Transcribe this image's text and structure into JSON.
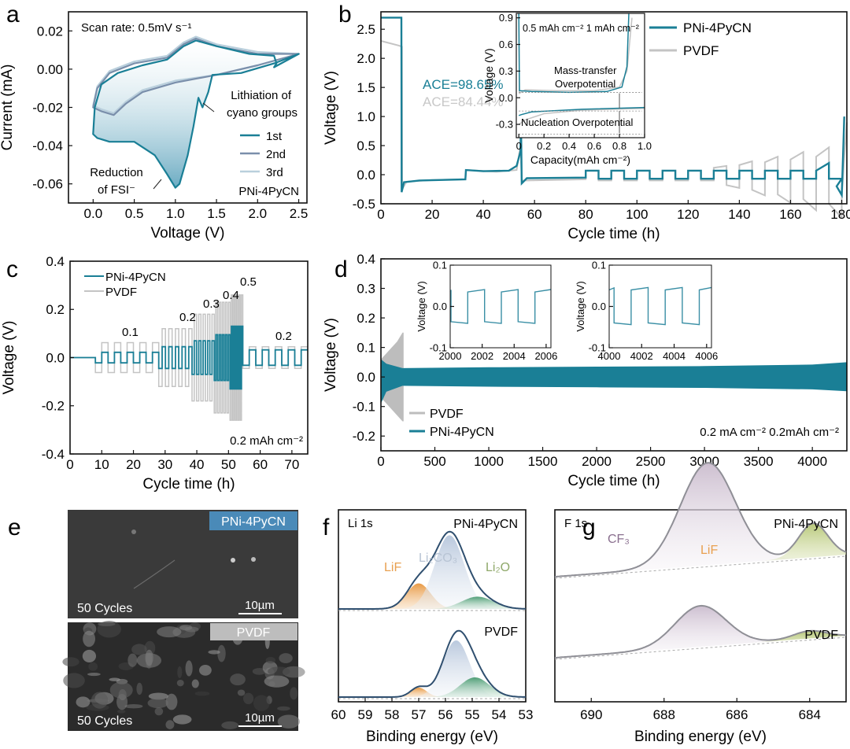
{
  "colors": {
    "teal": "#1a7f96",
    "gray": "#c4c4c4",
    "navy": "#2f4f6f",
    "blueLabel": "#4a8ab8",
    "orange": "#e89a45",
    "green": "#6aaa7a",
    "purple": "#8a6f8f",
    "lif_text": "#e8a050",
    "li2o_text": "#8fa86a",
    "li2co3_text": "#b8c4d4"
  },
  "panels": {
    "a": "a",
    "b": "b",
    "c": "c",
    "d": "d",
    "e": "e",
    "f": "f",
    "g": "g"
  },
  "chart_data": [
    {
      "id": "a",
      "type": "line",
      "title": "",
      "xlabel": "Voltage (V)",
      "ylabel": "Current (mA)",
      "xlim": [
        -0.3,
        2.6
      ],
      "ylim": [
        -0.07,
        0.03
      ],
      "xticks": [
        0.0,
        0.5,
        1.0,
        1.5,
        2.0,
        2.5
      ],
      "xtick_labels": [
        "0.0",
        "0.5",
        "1.0",
        "1.5",
        "2.0",
        "2.5"
      ],
      "yticks": [
        0.02,
        0.0,
        -0.02,
        -0.04,
        -0.06
      ],
      "ytick_labels": [
        "0.02",
        "0.00",
        "-0.02",
        "-0.04",
        "-0.06"
      ],
      "annotations": [
        "Scan rate: 0.5mV s⁻¹",
        "Lithiation of",
        "cyano groups",
        "Reduction",
        "of FSI⁻",
        "PNi-4PyCN"
      ],
      "legend": [
        "1st",
        "2nd",
        "3rd"
      ],
      "series": [
        {
          "name": "1st",
          "x": [
            2.5,
            2.2,
            1.8,
            1.45,
            1.4,
            1.33,
            1.28,
            1.22,
            1.15,
            1.05,
            1.0,
            0.9,
            0.75,
            0.5,
            0.3,
            0.2,
            0.05,
            0.0,
            0.02,
            0.1,
            0.3,
            0.6,
            0.9,
            1.1,
            1.25,
            1.5,
            1.9,
            2.2,
            2.23,
            2.2,
            2.5
          ],
          "y": [
            0.008,
            0.003,
            -0.002,
            -0.003,
            -0.012,
            -0.02,
            -0.015,
            -0.03,
            -0.045,
            -0.06,
            -0.062,
            -0.055,
            -0.045,
            -0.038,
            -0.038,
            -0.038,
            -0.036,
            -0.034,
            -0.02,
            -0.008,
            -0.002,
            0.002,
            0.005,
            0.012,
            0.015,
            0.012,
            0.008,
            0.007,
            0.003,
            0.001,
            0.008
          ]
        },
        {
          "name": "2nd",
          "x": [
            2.5,
            2.0,
            1.5,
            1.0,
            0.6,
            0.4,
            0.25,
            0.1,
            0.0,
            0.05,
            0.2,
            0.5,
            0.9,
            1.1,
            1.25,
            1.5,
            2.0,
            2.5
          ],
          "y": [
            0.008,
            0.002,
            -0.003,
            -0.007,
            -0.012,
            -0.018,
            -0.024,
            -0.022,
            -0.02,
            -0.01,
            -0.002,
            0.003,
            0.006,
            0.013,
            0.016,
            0.012,
            0.008,
            0.008
          ]
        },
        {
          "name": "3rd",
          "x": [
            2.5,
            2.0,
            1.5,
            1.0,
            0.6,
            0.4,
            0.25,
            0.1,
            0.0,
            0.05,
            0.2,
            0.5,
            0.9,
            1.1,
            1.25,
            1.5,
            2.0,
            2.5
          ],
          "y": [
            0.008,
            0.002,
            -0.003,
            -0.006,
            -0.011,
            -0.017,
            -0.023,
            -0.021,
            -0.019,
            -0.009,
            -0.001,
            0.004,
            0.007,
            0.014,
            0.017,
            0.013,
            0.009,
            0.008
          ]
        }
      ]
    },
    {
      "id": "b",
      "type": "line",
      "xlabel": "Cycle time (h)",
      "ylabel": "Voltage (V)",
      "xlim": [
        0,
        182
      ],
      "ylim": [
        -0.5,
        2.8
      ],
      "xticks": [
        0,
        20,
        40,
        60,
        80,
        100,
        120,
        140,
        160,
        180
      ],
      "xtick_labels": [
        "0",
        "20",
        "40",
        "60",
        "80",
        "100",
        "120",
        "140",
        "160",
        "180"
      ],
      "yticks": [
        2.5,
        2.0,
        1.5,
        1.0,
        0.5,
        0.0,
        -0.5
      ],
      "ytick_labels": [
        "2.5",
        "2.0",
        "1.5",
        "1.0",
        "0.5",
        "0.0",
        "-0.5"
      ],
      "annotations": [
        "ACE=98.65%",
        "ACE=84.44%"
      ],
      "legend": [
        "PNi-4PyCN",
        "PVDF"
      ],
      "series": [
        {
          "name": "PNi-4PyCN",
          "desc": "OCV ~2.7 V to 8 h, plating -0.1 V to 33 h, stripping 0.05 V to 54 h (spike to 1.0), then 0.5/1 mAh cycles ±0.07 V to 180 h"
        },
        {
          "name": "PVDF",
          "desc": "OCV ~2.3 V, similar plating, growing polarization after 120 h up to ±0.4 V"
        }
      ],
      "inset": {
        "xlabel": "Capacity(mAh cm⁻²)",
        "ylabel": "Voltage (V)",
        "xlim": [
          -0.02,
          1.0
        ],
        "ylim": [
          -0.45,
          0.95
        ],
        "xticks": [
          0,
          0.2,
          0.4,
          0.6,
          0.8,
          1.0
        ],
        "xtick_labels": [
          "0",
          "0.2",
          "0.4",
          "0.6",
          "0.8",
          "1.0"
        ],
        "yticks": [
          0.9,
          0.6,
          0.3,
          0.0,
          -0.3
        ],
        "ytick_labels": [
          "0.9",
          "0.6",
          "0.3",
          "0.0",
          "-0.3"
        ],
        "annotations": [
          "0.5 mAh cm⁻² 1 mAh cm⁻²",
          "Mass-transfer",
          "Overpotential",
          "Nucleation Overpotential"
        ]
      }
    },
    {
      "id": "c",
      "type": "line",
      "xlabel": "Cycle time (h)",
      "ylabel": "Voltage (V)",
      "xlim": [
        0,
        75
      ],
      "ylim": [
        -0.4,
        0.4
      ],
      "xticks": [
        0,
        10,
        20,
        30,
        40,
        50,
        60,
        70
      ],
      "xtick_labels": [
        "0",
        "10",
        "20",
        "30",
        "40",
        "50",
        "60",
        "70"
      ],
      "yticks": [
        0.4,
        0.2,
        0.0,
        -0.2,
        -0.4
      ],
      "ytick_labels": [
        "0.4",
        "0.2",
        "0.0",
        "-0.2",
        "-0.4"
      ],
      "legend": [
        "PNi-4PyCN",
        "PVDF"
      ],
      "annotations": [
        "0.1",
        "0.2",
        "0.3",
        "0.4",
        "0.5",
        "0.2",
        "0.2 mAh cm⁻²"
      ],
      "segments": [
        {
          "rate": "0.1",
          "t": [
            8,
            28
          ],
          "cycles": 5,
          "pni": 0.022,
          "pvdf": 0.062
        },
        {
          "rate": "0.2",
          "t": [
            28,
            38.5
          ],
          "cycles": 5,
          "pni": 0.045,
          "pvdf": 0.12
        },
        {
          "rate": "0.3",
          "t": [
            38.5,
            45.5
          ],
          "cycles": 5,
          "pni": 0.07,
          "pvdf": 0.18
        },
        {
          "rate": "0.4",
          "t": [
            45.5,
            50.5
          ],
          "cycles": 5,
          "pni": 0.095,
          "pvdf": 0.23
        },
        {
          "rate": "0.5",
          "t": [
            50.5,
            54.5
          ],
          "cycles": 5,
          "pni": 0.13,
          "pvdf": 0.26
        },
        {
          "rate": "0.2",
          "t": [
            54.5,
            75
          ],
          "cycles": 5,
          "pni": 0.032,
          "pvdf": 0.045
        }
      ]
    },
    {
      "id": "d",
      "type": "area",
      "xlabel": "Cycle time (h)",
      "ylabel": "Voltage (V)",
      "xlim": [
        0,
        4320
      ],
      "ylim": [
        -0.25,
        0.4
      ],
      "xticks": [
        0,
        500,
        1000,
        1500,
        2000,
        2500,
        3000,
        3500,
        4000
      ],
      "xtick_labels": [
        "0",
        "500",
        "1000",
        "1500",
        "2000",
        "2500",
        "3000",
        "3500",
        "4000"
      ],
      "yticks": [
        0.4,
        0.3,
        0.2,
        0.1,
        0.0,
        -0.1,
        -0.2
      ],
      "ytick_labels": [
        "0.4",
        "0.3",
        "0.2",
        "0.1",
        "0.0",
        "-0.1",
        "-0.2"
      ],
      "legend": [
        "PVDF",
        "PNi-4PyCN"
      ],
      "annotations": [
        "0.2 mA cm⁻²  0.2mAh cm⁻²"
      ],
      "series": [
        {
          "name": "PVDF",
          "x": [
            0,
            50,
            100,
            150,
            200,
            210
          ],
          "upper": [
            0.06,
            0.08,
            0.1,
            0.12,
            0.15,
            0.15
          ],
          "lower": [
            -0.07,
            -0.09,
            -0.11,
            -0.13,
            -0.15,
            -0.15
          ]
        },
        {
          "name": "PNi-4PyCN",
          "x": [
            0,
            50,
            200,
            1000,
            2000,
            3000,
            4000,
            4320
          ],
          "upper": [
            0.06,
            0.045,
            0.03,
            0.033,
            0.035,
            0.037,
            0.042,
            0.05
          ],
          "lower": [
            -0.09,
            -0.05,
            -0.03,
            -0.033,
            -0.035,
            -0.037,
            -0.042,
            -0.048
          ]
        }
      ],
      "insets": [
        {
          "xlim": [
            2000,
            2006.3
          ],
          "ylim": [
            -0.1,
            0.1
          ],
          "xticks": [
            2000,
            2002,
            2004,
            2006
          ],
          "xtick_labels": [
            "2000",
            "2002",
            "2004",
            "2006"
          ],
          "yticks": [
            0.1,
            0.0,
            -0.1
          ],
          "ytick_labels": [
            "0.1",
            "0.0",
            "-0.1"
          ],
          "ylabel": "Voltage (V)",
          "amp_hi": 0.035,
          "amp_lo": -0.037,
          "start": 2000.05,
          "period": 2.1
        },
        {
          "xlim": [
            4000,
            4006.3
          ],
          "ylim": [
            -0.1,
            0.1
          ],
          "xticks": [
            4000,
            4002,
            4004,
            4006
          ],
          "xtick_labels": [
            "4000",
            "4002",
            "4004",
            "4006"
          ],
          "yticks": [
            0.1,
            0.0,
            -0.1
          ],
          "ytick_labels": [
            "0.1",
            "0.0",
            "-0.1"
          ],
          "ylabel": "Voltage (V)",
          "amp_hi": 0.04,
          "amp_lo": -0.04,
          "start": 4000.3,
          "period": 2.1
        }
      ]
    },
    {
      "id": "f",
      "type": "line",
      "xlabel": "Binding energy (eV)",
      "title": "Li 1s",
      "xlim": [
        60,
        53
      ],
      "xticks": [
        60,
        59,
        58,
        57,
        56,
        55,
        54,
        53
      ],
      "xtick_labels": [
        "60",
        "59",
        "58",
        "57",
        "56",
        "55",
        "54",
        "53"
      ],
      "labels": [
        "PNi-4PyCN",
        "PVDF"
      ],
      "peak_labels": [
        "Li₂CO₃",
        "LiF",
        "Li₂O"
      ],
      "components": {
        "PNi-4PyCN": {
          "LiF": {
            "c": 57.0,
            "h": 0.25,
            "w": 0.45
          },
          "Li2CO3": {
            "c": 55.85,
            "h": 0.72,
            "w": 0.55
          },
          "Li2O": {
            "c": 54.8,
            "h": 0.12,
            "w": 0.6
          }
        },
        "PVDF": {
          "LiF": {
            "c": 57.0,
            "h": 0.12,
            "w": 0.3
          },
          "Li2CO3": {
            "c": 55.6,
            "h": 0.72,
            "w": 0.5
          },
          "Li2O": {
            "c": 54.9,
            "h": 0.25,
            "w": 0.55
          }
        }
      }
    },
    {
      "id": "g",
      "type": "line",
      "xlabel": "Binding energy (eV)",
      "title": "F 1s",
      "xlim": [
        691,
        683
      ],
      "xticks": [
        690,
        688,
        686,
        684
      ],
      "xtick_labels": [
        "690",
        "688",
        "686",
        "684"
      ],
      "labels": [
        "PNi-4PyCN",
        "PVDF"
      ],
      "peak_labels": [
        "CF₃",
        "LiF"
      ],
      "components": {
        "PNi-4PyCN": {
          "CF3": {
            "c": 686.8,
            "h": 1.0,
            "w": 0.75
          },
          "LiF": {
            "c": 683.9,
            "h": 0.33,
            "w": 0.4
          }
        },
        "PVDF": {
          "CF3": {
            "c": 687.0,
            "h": 0.65,
            "w": 0.7
          },
          "LiF": {
            "c": 684.0,
            "h": 0.12,
            "w": 0.45
          }
        }
      }
    }
  ],
  "sem": {
    "top_label": "PNi-4PyCN",
    "bottom_label": "PVDF",
    "cycles_label": "50 Cycles",
    "scale_label": "10µm"
  }
}
